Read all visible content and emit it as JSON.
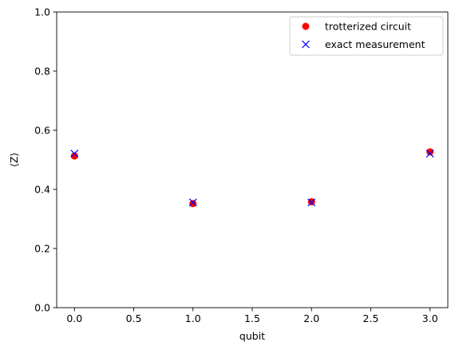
{
  "chart_data": {
    "type": "scatter",
    "xlabel": "qubit",
    "ylabel": "⟨Z⟩",
    "xlim": [
      -0.15,
      3.15
    ],
    "ylim": [
      0.0,
      1.0
    ],
    "xticks": [
      "0.0",
      "0.5",
      "1.0",
      "1.5",
      "2.0",
      "2.5",
      "3.0"
    ],
    "xtick_values": [
      0.0,
      0.5,
      1.0,
      1.5,
      2.0,
      2.5,
      3.0
    ],
    "yticks": [
      "0.0",
      "0.2",
      "0.4",
      "0.6",
      "0.8",
      "1.0"
    ],
    "ytick_values": [
      0.0,
      0.2,
      0.4,
      0.6,
      0.8,
      1.0
    ],
    "grid": false,
    "legend_position": "top-right",
    "series": [
      {
        "name": "trotterized circuit",
        "marker": "circle",
        "color": "#ff0000",
        "x": [
          0,
          1,
          2,
          3
        ],
        "y": [
          0.513,
          0.352,
          0.358,
          0.527
        ]
      },
      {
        "name": "exact measurement",
        "marker": "x",
        "color": "#0000ff",
        "x": [
          0,
          1,
          2,
          3
        ],
        "y": [
          0.521,
          0.356,
          0.356,
          0.521
        ]
      }
    ]
  }
}
